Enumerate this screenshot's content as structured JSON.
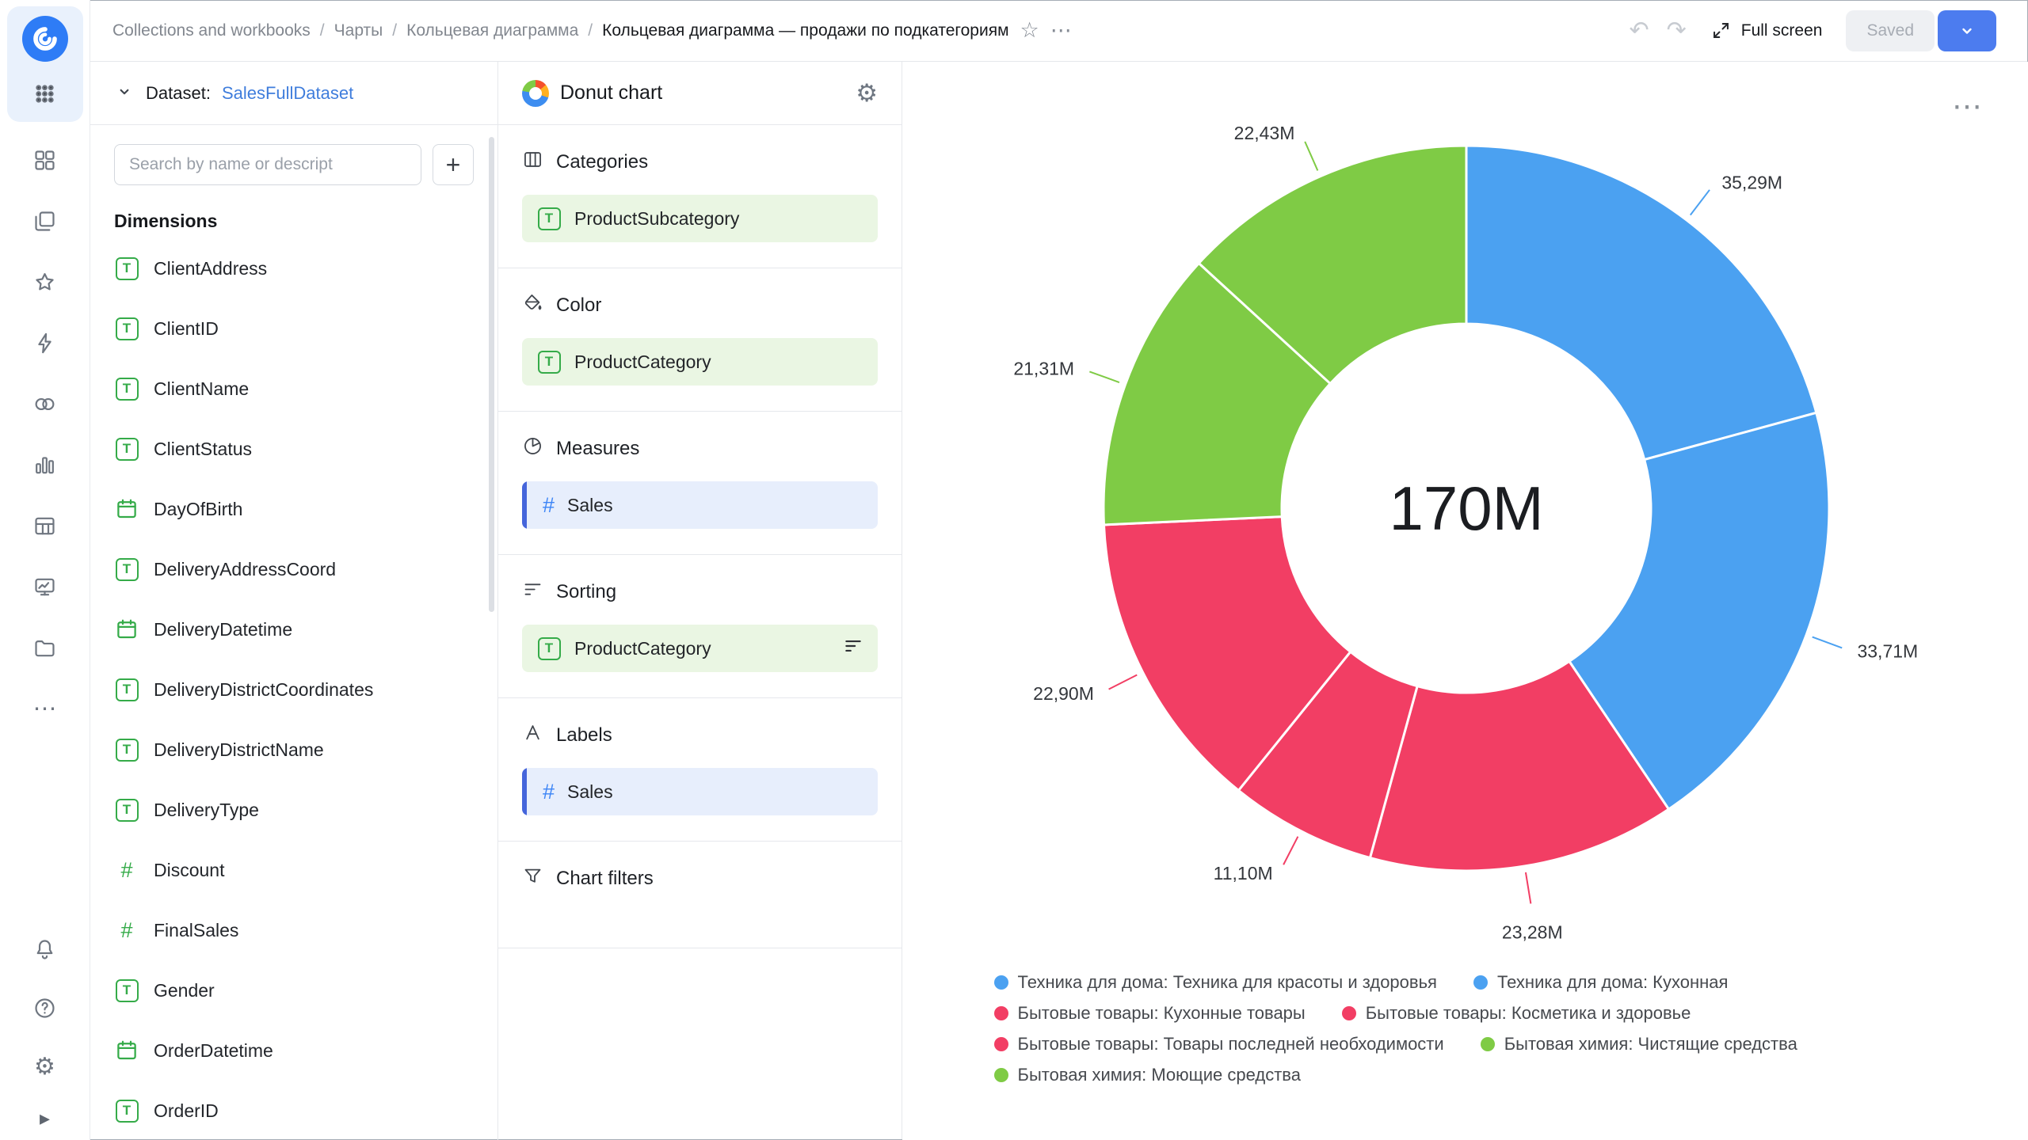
{
  "topbar": {
    "breadcrumbs": [
      {
        "label": "Collections and workbooks",
        "current": false
      },
      {
        "label": "Чарты",
        "current": false
      },
      {
        "label": "Кольцевая диаграмма",
        "current": false
      },
      {
        "label": "Кольцевая диаграмма — продажи по подкатегориям",
        "current": true
      }
    ],
    "full_screen_label": "Full screen",
    "saved_label": "Saved"
  },
  "icons": {
    "star": "☆",
    "more": "⋯",
    "undo": "↶",
    "redo": "↷",
    "gear": "⚙",
    "plus": "+",
    "collapse": "▸"
  },
  "colors": {
    "primary_blue": "#4c7cef",
    "dimension_green": "#35ab49",
    "measure_blue": "#3d85f6",
    "link_blue": "#3f7ddc"
  },
  "left_panel": {
    "dataset_label": "Dataset:",
    "dataset_name": "SalesFullDataset",
    "search_placeholder": "Search by name or descript",
    "dimensions_title": "Dimensions",
    "fields": [
      {
        "name": "ClientAddress",
        "type": "string"
      },
      {
        "name": "ClientID",
        "type": "string"
      },
      {
        "name": "ClientName",
        "type": "string"
      },
      {
        "name": "ClientStatus",
        "type": "string"
      },
      {
        "name": "DayOfBirth",
        "type": "date"
      },
      {
        "name": "DeliveryAddressCoord",
        "type": "string"
      },
      {
        "name": "DeliveryDatetime",
        "type": "date"
      },
      {
        "name": "DeliveryDistrictCoordinates",
        "type": "string"
      },
      {
        "name": "DeliveryDistrictName",
        "type": "string"
      },
      {
        "name": "DeliveryType",
        "type": "string"
      },
      {
        "name": "Discount",
        "type": "number"
      },
      {
        "name": "FinalSales",
        "type": "number"
      },
      {
        "name": "Gender",
        "type": "string"
      },
      {
        "name": "OrderDatetime",
        "type": "date"
      },
      {
        "name": "OrderID",
        "type": "string"
      }
    ]
  },
  "editor_panel": {
    "title": "Donut chart",
    "sections": [
      {
        "id": "categories",
        "label": "Categories",
        "chips": [
          {
            "text": "ProductSubcategory",
            "kind": "dim",
            "icon": "string"
          }
        ]
      },
      {
        "id": "color",
        "label": "Color",
        "chips": [
          {
            "text": "ProductCategory",
            "kind": "dim",
            "icon": "string"
          }
        ]
      },
      {
        "id": "measures",
        "label": "Measures",
        "chips": [
          {
            "text": "Sales",
            "kind": "measure",
            "icon": "number"
          }
        ]
      },
      {
        "id": "sorting",
        "label": "Sorting",
        "chips": [
          {
            "text": "ProductCategory",
            "kind": "dim",
            "icon": "string",
            "trailing": "sort"
          }
        ]
      },
      {
        "id": "labels",
        "label": "Labels",
        "chips": [
          {
            "text": "Sales",
            "kind": "measure",
            "icon": "number"
          }
        ]
      },
      {
        "id": "chart_filters",
        "label": "Chart filters",
        "chips": []
      }
    ]
  },
  "chart_data": {
    "type": "pie",
    "subtype": "donut",
    "title": "",
    "center_label": "170M",
    "total": 170.02,
    "legend_position": "bottom",
    "slices": [
      {
        "label": "35,29M",
        "value": 35.29,
        "color": "#4ba1f1"
      },
      {
        "label": "33,71M",
        "value": 33.71,
        "color": "#4ba1f1"
      },
      {
        "label": "23,28M",
        "value": 23.28,
        "color": "#f23e64"
      },
      {
        "label": "11,10M",
        "value": 11.1,
        "color": "#f23e64"
      },
      {
        "label": "22,90M",
        "value": 22.9,
        "color": "#f23e64"
      },
      {
        "label": "21,31M",
        "value": 21.31,
        "color": "#7fcb45"
      },
      {
        "label": "22,43M",
        "value": 22.43,
        "color": "#7fcb45"
      }
    ],
    "legend": [
      {
        "label": "Техника для дома: Техника для красоты и здоровья",
        "color": "#4ba1f1"
      },
      {
        "label": "Техника для дома: Кухонная",
        "color": "#4ba1f1"
      },
      {
        "label": "Бытовые товары: Кухонные товары",
        "color": "#f23e64"
      },
      {
        "label": "Бытовые товары: Косметика и здоровье",
        "color": "#f23e64"
      },
      {
        "label": "Бытовые товары: Товары последней необходимости",
        "color": "#f23e64"
      },
      {
        "label": "Бытовая химия: Чистящие средства",
        "color": "#7fcb45"
      },
      {
        "label": "Бытовая химия: Моющие средства",
        "color": "#7fcb45"
      }
    ]
  }
}
